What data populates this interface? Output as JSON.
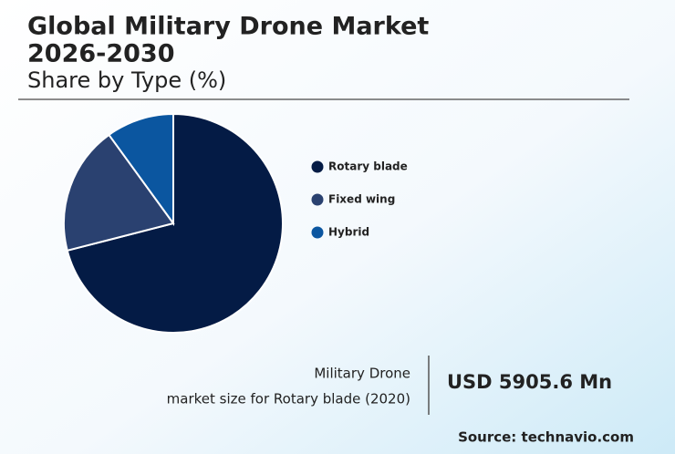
{
  "chart_data": {
    "type": "pie",
    "title": [
      "Global Military Drone Market",
      "2026-2030"
    ],
    "subtitle": "Share by Type (%)",
    "categories": [
      "Rotary blade",
      "Fixed wing",
      "Hybrid"
    ],
    "values": [
      71,
      19,
      10
    ],
    "colors": [
      "#041b45",
      "#2a4170",
      "#0b56a0"
    ],
    "legend": "right"
  },
  "highlight": {
    "label": [
      "Military Drone",
      "market size for Rotary blade (2020)"
    ],
    "value": "USD 5905.6 Mn",
    "source": "Source: technavio.com"
  }
}
